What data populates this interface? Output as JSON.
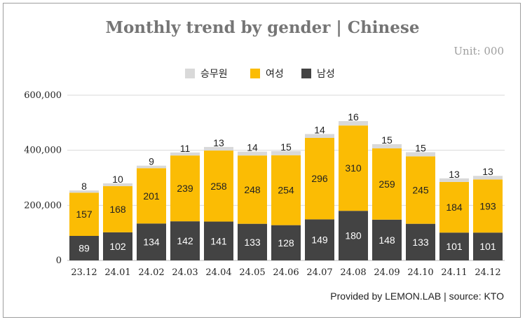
{
  "title": "Monthly trend by gender | Chinese",
  "unit": "Unit: 000",
  "footer": "Provided by LEMON.LAB | source: KTO",
  "colors": {
    "crew": "#d9d9d9",
    "female": "#fbbc04",
    "male": "#434343",
    "grid": "#d9d9d9"
  },
  "chart_data": {
    "type": "bar",
    "stacked": true,
    "categories": [
      "23.12",
      "24.01",
      "24.02",
      "24.03",
      "24.04",
      "24.05",
      "24.06",
      "24.07",
      "24.08",
      "24.09",
      "24.10",
      "24.11",
      "24.12"
    ],
    "series": [
      {
        "name": "남성",
        "values": [
          89,
          102,
          134,
          142,
          141,
          133,
          128,
          149,
          180,
          148,
          133,
          101,
          101
        ]
      },
      {
        "name": "여성",
        "values": [
          157,
          168,
          201,
          239,
          258,
          248,
          254,
          296,
          310,
          259,
          245,
          184,
          193
        ]
      },
      {
        "name": "승무원",
        "values": [
          8,
          10,
          9,
          11,
          13,
          14,
          15,
          14,
          16,
          15,
          15,
          13,
          13
        ]
      }
    ],
    "yticks": [
      "0",
      "200,000",
      "400,000",
      "600,000"
    ],
    "ylim": [
      0,
      600000
    ],
    "legend_position": "top-center",
    "grid": true
  }
}
